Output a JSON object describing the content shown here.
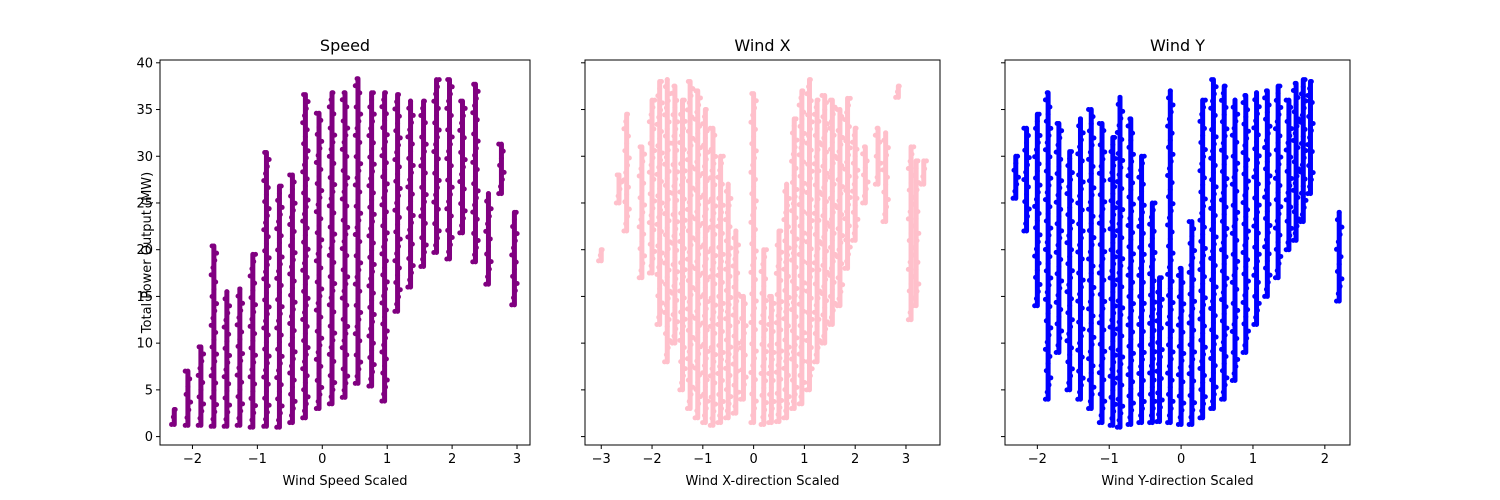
{
  "chart_data": [
    {
      "type": "scatter",
      "title": "Speed",
      "xlabel": "Wind Speed Scaled",
      "ylabel": "Total Power Output (MW)",
      "xlim": [
        -2.5,
        3.2
      ],
      "ylim": [
        -0.9,
        40.3
      ],
      "xticks": [
        -2,
        -1,
        0,
        1,
        2,
        3
      ],
      "yticks": [
        0,
        5,
        10,
        15,
        20,
        25,
        30,
        35,
        40
      ],
      "show_yticklabels": true,
      "color": "#800080",
      "columns": [
        {
          "x": -2.28,
          "y": [
            1.3,
            2.9
          ]
        },
        {
          "x": -2.07,
          "y": [
            1.2,
            7.0
          ]
        },
        {
          "x": -1.87,
          "y": [
            1.2,
            9.6
          ]
        },
        {
          "x": -1.67,
          "y": [
            1.1,
            20.4
          ]
        },
        {
          "x": -1.47,
          "y": [
            1.1,
            15.5
          ]
        },
        {
          "x": -1.27,
          "y": [
            1.2,
            15.8
          ]
        },
        {
          "x": -1.07,
          "y": [
            1.0,
            19.5
          ]
        },
        {
          "x": -0.86,
          "y": [
            1.1,
            30.4
          ]
        },
        {
          "x": -0.66,
          "y": [
            1.0,
            26.8
          ]
        },
        {
          "x": -0.46,
          "y": [
            1.5,
            28.0
          ]
        },
        {
          "x": -0.26,
          "y": [
            2.0,
            36.6
          ]
        },
        {
          "x": -0.05,
          "y": [
            3.0,
            34.6
          ]
        },
        {
          "x": 0.15,
          "y": [
            3.5,
            36.8
          ]
        },
        {
          "x": 0.35,
          "y": [
            4.2,
            36.8
          ]
        },
        {
          "x": 0.55,
          "y": [
            5.7,
            38.3
          ]
        },
        {
          "x": 0.76,
          "y": [
            5.4,
            36.8
          ]
        },
        {
          "x": 0.96,
          "y": [
            3.8,
            36.8
          ]
        },
        {
          "x": 1.16,
          "y": [
            13.4,
            36.6
          ]
        },
        {
          "x": 1.36,
          "y": [
            16.0,
            35.9
          ]
        },
        {
          "x": 1.56,
          "y": [
            18.2,
            35.9
          ]
        },
        {
          "x": 1.76,
          "y": [
            19.7,
            38.2
          ]
        },
        {
          "x": 1.96,
          "y": [
            19.0,
            38.2
          ]
        },
        {
          "x": 2.16,
          "y": [
            21.8,
            35.9
          ]
        },
        {
          "x": 2.36,
          "y": [
            18.7,
            37.7
          ]
        },
        {
          "x": 2.56,
          "y": [
            16.3,
            26.0
          ]
        },
        {
          "x": 2.76,
          "y": [
            26.0,
            31.3
          ]
        },
        {
          "x": 2.96,
          "y": [
            14.1,
            24.0
          ]
        }
      ]
    },
    {
      "type": "scatter",
      "title": "Wind X",
      "xlabel": "Wind X-direction Scaled",
      "ylabel": "",
      "xlim": [
        -3.32,
        3.67
      ],
      "ylim": [
        -0.9,
        40.3
      ],
      "xticks": [
        -3,
        -2,
        -1,
        0,
        1,
        2,
        3
      ],
      "yticks": [
        0,
        5,
        10,
        15,
        20,
        25,
        30,
        35,
        40
      ],
      "show_yticklabels": false,
      "color": "#ffc0cb",
      "columns": [
        {
          "x": -3.0,
          "y": [
            18.8,
            20.0
          ]
        },
        {
          "x": -2.65,
          "y": [
            25.0,
            28.0
          ]
        },
        {
          "x": -2.5,
          "y": [
            22.0,
            34.5
          ]
        },
        {
          "x": -2.2,
          "y": [
            17.0,
            31.0
          ]
        },
        {
          "x": -2.0,
          "y": [
            17.5,
            36.0
          ]
        },
        {
          "x": -1.85,
          "y": [
            12.0,
            38.0
          ]
        },
        {
          "x": -1.7,
          "y": [
            8.0,
            38.2
          ]
        },
        {
          "x": -1.55,
          "y": [
            10.0,
            37.5
          ]
        },
        {
          "x": -1.4,
          "y": [
            5.0,
            36.0
          ]
        },
        {
          "x": -1.25,
          "y": [
            3.0,
            38.0
          ]
        },
        {
          "x": -1.1,
          "y": [
            2.0,
            37.0
          ]
        },
        {
          "x": -0.95,
          "y": [
            1.5,
            35.0
          ]
        },
        {
          "x": -0.8,
          "y": [
            1.2,
            33.0
          ]
        },
        {
          "x": -0.65,
          "y": [
            1.5,
            30.0
          ]
        },
        {
          "x": -0.5,
          "y": [
            2.0,
            27.0
          ]
        },
        {
          "x": -0.35,
          "y": [
            2.5,
            22.0
          ]
        },
        {
          "x": -0.2,
          "y": [
            4.0,
            15.0
          ]
        },
        {
          "x": 0.0,
          "y": [
            1.5,
            36.7
          ]
        },
        {
          "x": 0.2,
          "y": [
            1.3,
            20.0
          ]
        },
        {
          "x": 0.35,
          "y": [
            1.5,
            15.0
          ]
        },
        {
          "x": 0.5,
          "y": [
            1.6,
            22.0
          ]
        },
        {
          "x": 0.65,
          "y": [
            2.0,
            27.0
          ]
        },
        {
          "x": 0.8,
          "y": [
            3.0,
            34.0
          ]
        },
        {
          "x": 0.95,
          "y": [
            3.5,
            37.0
          ]
        },
        {
          "x": 1.1,
          "y": [
            5.0,
            38.2
          ]
        },
        {
          "x": 1.25,
          "y": [
            8.0,
            36.0
          ]
        },
        {
          "x": 1.4,
          "y": [
            10.0,
            36.5
          ]
        },
        {
          "x": 1.55,
          "y": [
            12.0,
            36.0
          ]
        },
        {
          "x": 1.7,
          "y": [
            14.0,
            35.0
          ]
        },
        {
          "x": 1.85,
          "y": [
            18.0,
            36.2
          ]
        },
        {
          "x": 2.0,
          "y": [
            21.0,
            33.0
          ]
        },
        {
          "x": 2.2,
          "y": [
            25.0,
            31.0
          ]
        },
        {
          "x": 2.45,
          "y": [
            27.0,
            33.0
          ]
        },
        {
          "x": 2.6,
          "y": [
            23.0,
            32.5
          ]
        },
        {
          "x": 2.85,
          "y": [
            36.3,
            37.5
          ]
        },
        {
          "x": 3.1,
          "y": [
            12.5,
            31.0
          ]
        },
        {
          "x": 3.2,
          "y": [
            14.0,
            29.5
          ]
        },
        {
          "x": 3.35,
          "y": [
            27.0,
            29.5
          ]
        }
      ]
    },
    {
      "type": "scatter",
      "title": "Wind Y",
      "xlabel": "Wind Y-direction Scaled",
      "ylabel": "",
      "xlim": [
        -2.45,
        2.35
      ],
      "ylim": [
        -0.9,
        40.3
      ],
      "xticks": [
        -2,
        -1,
        0,
        1,
        2
      ],
      "yticks": [
        0,
        5,
        10,
        15,
        20,
        25,
        30,
        35,
        40
      ],
      "show_yticklabels": false,
      "color": "#0000ff",
      "columns": [
        {
          "x": -2.3,
          "y": [
            25.5,
            30.0
          ]
        },
        {
          "x": -2.15,
          "y": [
            22.0,
            33.0
          ]
        },
        {
          "x": -2.0,
          "y": [
            14.0,
            34.5
          ]
        },
        {
          "x": -1.85,
          "y": [
            4.0,
            36.8
          ]
        },
        {
          "x": -1.7,
          "y": [
            9.0,
            33.5
          ]
        },
        {
          "x": -1.55,
          "y": [
            5.0,
            30.5
          ]
        },
        {
          "x": -1.4,
          "y": [
            4.0,
            34.0
          ]
        },
        {
          "x": -1.25,
          "y": [
            3.0,
            35.0
          ]
        },
        {
          "x": -1.1,
          "y": [
            1.5,
            33.5
          ]
        },
        {
          "x": -0.95,
          "y": [
            1.2,
            32.0
          ]
        },
        {
          "x": -0.85,
          "y": [
            1.0,
            36.3
          ]
        },
        {
          "x": -0.7,
          "y": [
            1.3,
            34.0
          ]
        },
        {
          "x": -0.55,
          "y": [
            1.5,
            30.0
          ]
        },
        {
          "x": -0.4,
          "y": [
            1.5,
            25.0
          ]
        },
        {
          "x": -0.3,
          "y": [
            1.6,
            17.0
          ]
        },
        {
          "x": -0.15,
          "y": [
            1.5,
            37.0
          ]
        },
        {
          "x": 0.0,
          "y": [
            1.3,
            18.0
          ]
        },
        {
          "x": 0.15,
          "y": [
            1.3,
            23.0
          ]
        },
        {
          "x": 0.3,
          "y": [
            2.0,
            36.0
          ]
        },
        {
          "x": 0.45,
          "y": [
            3.0,
            38.2
          ]
        },
        {
          "x": 0.6,
          "y": [
            4.0,
            37.5
          ]
        },
        {
          "x": 0.75,
          "y": [
            6.0,
            36.0
          ]
        },
        {
          "x": 0.9,
          "y": [
            9.0,
            36.5
          ]
        },
        {
          "x": 1.05,
          "y": [
            12.0,
            36.8
          ]
        },
        {
          "x": 1.2,
          "y": [
            15.0,
            37.0
          ]
        },
        {
          "x": 1.35,
          "y": [
            17.0,
            37.5
          ]
        },
        {
          "x": 1.5,
          "y": [
            20.0,
            36.0
          ]
        },
        {
          "x": 1.6,
          "y": [
            21.0,
            37.8
          ]
        },
        {
          "x": 1.7,
          "y": [
            23.0,
            38.2
          ]
        },
        {
          "x": 1.8,
          "y": [
            26.0,
            38.0
          ]
        },
        {
          "x": 2.2,
          "y": [
            14.5,
            24.0
          ]
        }
      ]
    }
  ]
}
